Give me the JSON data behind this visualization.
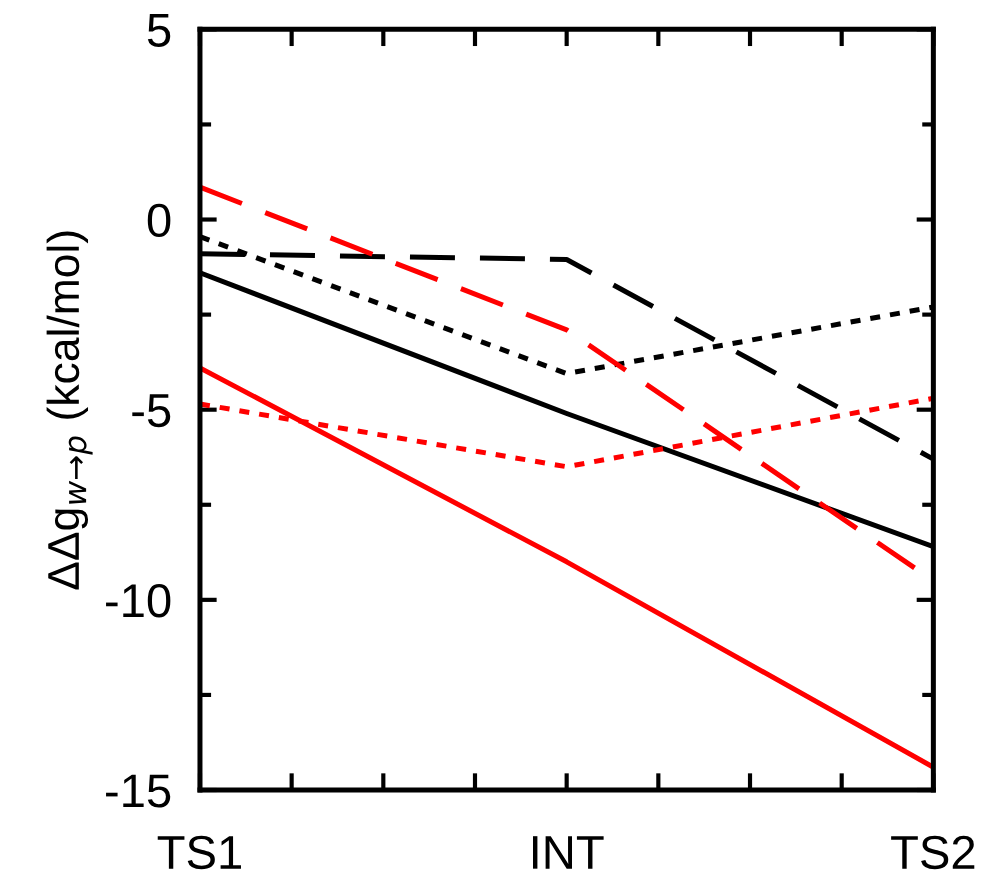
{
  "chart_data": {
    "type": "line",
    "ylabel": "ΔΔg$_{w→p}$ (kcal/mol)",
    "categories": [
      "TS1",
      "INT",
      "TS2"
    ],
    "ylim": [
      -15,
      5
    ],
    "yticks": [
      -15,
      {
        "value": -12.5,
        "label": null
      },
      -10,
      {
        "value": -7.5,
        "label": null
      },
      -5,
      {
        "value": -2.5,
        "label": null
      },
      0,
      {
        "value": 2.5,
        "label": null
      },
      5
    ],
    "grid": false,
    "legend": false,
    "series": [
      {
        "color": "#000000",
        "line_style": "solid",
        "values": [
          -1.4,
          -5.1,
          -8.6
        ]
      },
      {
        "color": "#000000",
        "line_style": "dotted",
        "values": [
          -0.45,
          -4.05,
          -2.3
        ]
      },
      {
        "color": "#000000",
        "line_style": "dashed",
        "values": [
          -0.9,
          -1.05,
          -6.3
        ]
      },
      {
        "color": "#ff0000",
        "line_style": "dashed",
        "values": [
          0.85,
          -2.9,
          -9.5
        ]
      },
      {
        "color": "#ff0000",
        "line_style": "dotted",
        "values": [
          -4.85,
          -6.5,
          -4.7
        ]
      },
      {
        "color": "#ff0000",
        "line_style": "solid",
        "values": [
          -3.9,
          -9.0,
          -14.4
        ]
      }
    ]
  }
}
